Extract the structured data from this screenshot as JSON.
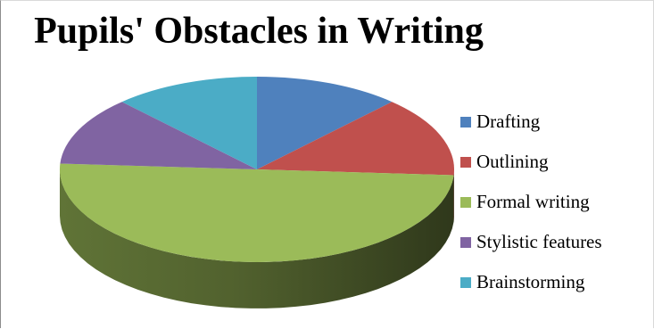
{
  "chart_data": {
    "type": "pie",
    "title": "Pupils' Obstacles in Writing",
    "legend_position": "right",
    "three_d": true,
    "categories": [
      "Drafting",
      "Outlining",
      "Formal writing",
      "Stylistic features",
      "Brainstorming"
    ],
    "values": [
      12,
      14,
      50,
      12,
      12
    ],
    "colors": [
      "#4f81bd",
      "#c0504d",
      "#9bbb59",
      "#8064a2",
      "#4bacc6"
    ]
  }
}
